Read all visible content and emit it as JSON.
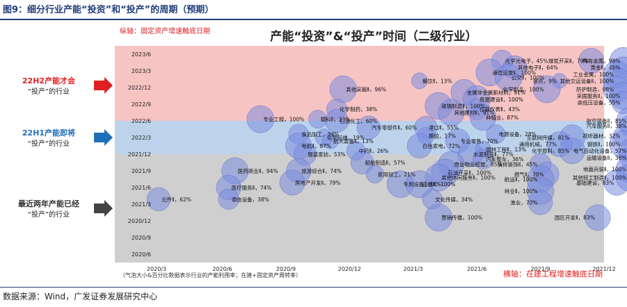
{
  "figure": {
    "title": "图9：细分行业产能“投资”和“投产”的周期（预期）",
    "source": "数据来源：Wind，广发证券发展研究中心"
  },
  "colors": {
    "band_top": "#f7c4c4",
    "band_mid": "#bcd3eb",
    "band_bottom": "#cfcfcf",
    "bubble": "#7c8ee0",
    "label_red": "#e02020",
    "label_blue": "#1f6fb8",
    "label_dark": "#333333"
  },
  "chart_data": {
    "type": "scatter",
    "title": "产能“投资”&“投产”时间（二级行业）",
    "y_axis_note": "纵轴：固定资产增速触底日期",
    "x_axis_note": "横轴：在建工程增速触底日期",
    "bubble_note": "（气泡大小&百分比数据表示行业的产能利用率；在建+固定资产周转率）",
    "xlabel": "在建工程增速触底日期",
    "ylabel": "固定资产增速触底日期",
    "x_ticks": [
      "2020/3",
      "2020/6",
      "2020/9",
      "2020/12",
      "2021/3",
      "2021/6",
      "2021/9",
      "2021/12"
    ],
    "y_ticks": [
      "2020/6",
      "2020/9",
      "2020/12",
      "2021/3",
      "2021/6",
      "2021/9",
      "2021/12",
      "2022/3",
      "2022/6",
      "2022/9",
      "2022/12",
      "2023/3",
      "2023/6"
    ],
    "bands": [
      {
        "label": "22H2产能才会“投产”的行业",
        "from": 8,
        "to": 12.5
      },
      {
        "label": "22H1产能即将“投产”的行业",
        "from": 6,
        "to": 8
      },
      {
        "label": "最近两年产能已经“投产”的行业",
        "from": -0.5,
        "to": 6
      }
    ],
    "series": [
      {
        "name": "行业",
        "points": [
          {
            "label": "光学光电子",
            "pct": "45%",
            "x": 5.4,
            "y": 11.6,
            "size": 45
          },
          {
            "label": "其他电子Ⅱ",
            "pct": "64%",
            "x": 5.6,
            "y": 11.2,
            "size": 64
          },
          {
            "label": "通信运营Ⅱ",
            "pct": "100%",
            "x": 5.2,
            "y": 10.9,
            "size": 100
          },
          {
            "label": "公交Ⅱ",
            "pct": "100%",
            "x": 5.5,
            "y": 10.6,
            "size": 100
          },
          {
            "label": "煤炭开采Ⅱ",
            "pct": "79%",
            "x": 6.8,
            "y": 11.6,
            "size": 79
          },
          {
            "label": "稀有金属",
            "pct": "98%",
            "x": 7.3,
            "y": 11.6,
            "size": 98
          },
          {
            "label": "黄金Ⅱ",
            "pct": "45%",
            "x": 7.3,
            "y": 11.2,
            "size": 45
          },
          {
            "label": "工业金属",
            "pct": "100%",
            "x": 7.2,
            "y": 10.8,
            "size": 100
          },
          {
            "label": "景点",
            "pct": "9%",
            "x": 6.3,
            "y": 10.4,
            "size": 9
          },
          {
            "label": "其他交运设备Ⅱ",
            "pct": "100%",
            "x": 7.2,
            "y": 10.4,
            "size": 100
          },
          {
            "label": "餐饮Ⅱ",
            "pct": "13%",
            "x": 4.1,
            "y": 10.4,
            "size": 13
          },
          {
            "label": "其他采掘Ⅱ",
            "pct": "96%",
            "x": 2.9,
            "y": 9.9,
            "size": 96
          },
          {
            "label": "化学制品",
            "pct": "100%",
            "x": 6.1,
            "y": 9.9,
            "size": 100
          },
          {
            "label": "防护制造",
            "pct": "98%",
            "x": 7.2,
            "y": 9.9,
            "size": 98
          },
          {
            "label": "金属非金属新材料",
            "pct": "91%",
            "x": 4.8,
            "y": 9.7,
            "size": 91
          },
          {
            "label": "房屋建设Ⅱ",
            "pct": "100%",
            "x": 5.0,
            "y": 9.3,
            "size": 100
          },
          {
            "label": "采掘服务Ⅱ",
            "pct": "100%",
            "x": 7.3,
            "y": 9.5,
            "size": 100
          },
          {
            "label": "玻璃制造Ⅱ",
            "pct": "100%",
            "x": 4.4,
            "y": 8.9,
            "size": 100
          },
          {
            "label": "高低压设备",
            "pct": "55%",
            "x": 7.3,
            "y": 9.1,
            "size": 55
          },
          {
            "label": "仪器仪表Ⅱ",
            "pct": "43%",
            "x": 5.0,
            "y": 8.7,
            "size": 43
          },
          {
            "label": "其他建材Ⅱ",
            "pct": "91%",
            "x": 4.6,
            "y": 8.5,
            "size": 91
          },
          {
            "label": "化学制药",
            "pct": "38%",
            "x": 2.8,
            "y": 8.7,
            "size": 38
          },
          {
            "label": "塑料Ⅱ",
            "pct": "23%",
            "x": 2.5,
            "y": 8.1,
            "size": 23
          },
          {
            "label": "种植业",
            "pct": "87%",
            "x": 5.1,
            "y": 8.2,
            "size": 87
          },
          {
            "label": "航空装备Ⅱ",
            "pct": "85%",
            "x": 7.4,
            "y": 8.0,
            "size": 85
          },
          {
            "label": "专业工程",
            "pct": "100%",
            "x": 1.6,
            "y": 8.1,
            "size": 100
          },
          {
            "label": "石油化工",
            "pct": "60%",
            "x": 2.8,
            "y": 8.0,
            "size": 60
          },
          {
            "label": "汽车服务Ⅱ",
            "pct": "38%",
            "x": 7.4,
            "y": 7.7,
            "size": 38
          },
          {
            "label": "汽车零部件Ⅱ",
            "pct": "60%",
            "x": 3.3,
            "y": 7.6,
            "size": 60
          },
          {
            "label": "港口Ⅱ",
            "pct": "55%",
            "x": 4.2,
            "y": 7.6,
            "size": 55
          },
          {
            "label": "食品加工",
            "pct": "34%",
            "x": 2.2,
            "y": 7.2,
            "size": 34
          },
          {
            "label": "电源设备",
            "pct": "28%",
            "x": 5.3,
            "y": 7.2,
            "size": 28
          },
          {
            "label": "视听器材",
            "pct": "32%",
            "x": 7.3,
            "y": 7.1,
            "size": 32
          },
          {
            "label": "化学纤维",
            "pct": "19%",
            "x": 2.6,
            "y": 7.0,
            "size": 19
          },
          {
            "label": "橡胶",
            "pct": "17%",
            "x": 4.2,
            "y": 7.1,
            "size": 17
          },
          {
            "label": "航天装备Ⅱ",
            "pct": "13%",
            "x": 2.7,
            "y": 6.8,
            "size": 13
          },
          {
            "label": "专业零售",
            "pct": "70%",
            "x": 4.7,
            "y": 6.8,
            "size": 70
          },
          {
            "label": "互联网传媒",
            "pct": "81%",
            "x": 6.5,
            "y": 7.0,
            "size": 81
          },
          {
            "label": "钢铁Ⅱ",
            "pct": "100%",
            "x": 7.3,
            "y": 6.6,
            "size": 100
          },
          {
            "label": "电机Ⅱ",
            "pct": "87%",
            "x": 2.2,
            "y": 6.5,
            "size": 87
          },
          {
            "label": "白色家电",
            "pct": "72%",
            "x": 4.1,
            "y": 6.5,
            "size": 72
          },
          {
            "label": "通用机械",
            "pct": "77%",
            "x": 6.3,
            "y": 6.6,
            "size": 77
          },
          {
            "label": "中药Ⅱ",
            "pct": "26%",
            "x": 3.1,
            "y": 6.2,
            "size": 26
          },
          {
            "label": "园林工程Ⅱ",
            "pct": "13%",
            "x": 5.1,
            "y": 6.3,
            "size": 13
          },
          {
            "label": "化学原料",
            "pct": "85%",
            "x": 6.5,
            "y": 6.2,
            "size": 85
          },
          {
            "label": "电气自动化设备",
            "pct": "57%",
            "x": 7.4,
            "y": 6.2,
            "size": 57
          },
          {
            "label": "服装家纺",
            "pct": "53%",
            "x": 2.3,
            "y": 6.0,
            "size": 53
          },
          {
            "label": "水泥制造Ⅱ",
            "pct": "77%",
            "x": 4.9,
            "y": 6.0,
            "size": 77
          },
          {
            "label": "汽车整车",
            "pct": "36%",
            "x": 5.1,
            "y": 5.7,
            "size": 36
          },
          {
            "label": "运输设备Ⅱ",
            "pct": "36%",
            "x": 7.4,
            "y": 5.8,
            "size": 36
          },
          {
            "label": "船舶制造Ⅱ",
            "pct": "57%",
            "x": 3.2,
            "y": 5.5,
            "size": 57
          },
          {
            "label": "商业物业经营",
            "pct": "85%",
            "x": 4.6,
            "y": 5.4,
            "size": 85
          },
          {
            "label": "装修装饰Ⅱ",
            "pct": "45%",
            "x": 6.0,
            "y": 5.4,
            "size": 45
          },
          {
            "label": "地面兵装Ⅱ",
            "pct": "100%",
            "x": 7.4,
            "y": 5.1,
            "size": 100
          },
          {
            "label": "医药商业Ⅱ",
            "pct": "94%",
            "x": 1.2,
            "y": 5.0,
            "size": 94
          },
          {
            "label": "旅游综合Ⅱ",
            "pct": "74%",
            "x": 2.2,
            "y": 5.0,
            "size": 74
          },
          {
            "label": "家用轻工",
            "pct": "21%",
            "x": 3.4,
            "y": 4.8,
            "size": 21
          },
          {
            "label": "石油开采Ⅱ",
            "pct": "100%",
            "x": 4.5,
            "y": 4.9,
            "size": 100
          },
          {
            "label": "燃气Ⅱ",
            "pct": "70%",
            "x": 6.1,
            "y": 4.8,
            "size": 70
          },
          {
            "label": "其他休闲服务Ⅱ",
            "pct": "100%",
            "x": 4.4,
            "y": 4.6,
            "size": 100
          },
          {
            "label": "航运Ⅱ",
            "pct": "100%",
            "x": 6.0,
            "y": 4.5,
            "size": 100
          },
          {
            "label": "其他轻工制造Ⅱ",
            "pct": "100%",
            "x": 7.4,
            "y": 4.6,
            "size": 100
          },
          {
            "label": "房地产开发Ⅱ",
            "pct": "79%",
            "x": 2.1,
            "y": 4.3,
            "size": 79
          },
          {
            "label": "专用设备",
            "pct": "98%",
            "x": 3.8,
            "y": 4.2,
            "size": 98
          },
          {
            "label": "造纸Ⅱ",
            "pct": "100%",
            "x": 4.1,
            "y": 4.2,
            "size": 100
          },
          {
            "label": "基础建设",
            "pct": "83%",
            "x": 7.2,
            "y": 4.3,
            "size": 83
          },
          {
            "label": "医疗服务Ⅱ",
            "pct": "74%",
            "x": 1.1,
            "y": 4.0,
            "size": 74
          },
          {
            "label": "林业Ⅱ",
            "pct": "100%",
            "x": 6.0,
            "y": 3.8,
            "size": 100
          },
          {
            "label": "通信设备",
            "pct": "38%",
            "x": 1.1,
            "y": 3.3,
            "size": 38
          },
          {
            "label": "文化传媒",
            "pct": "34%",
            "x": 4.3,
            "y": 3.3,
            "size": 34
          },
          {
            "label": "渔业",
            "pct": "70%",
            "x": 6.0,
            "y": 3.1,
            "size": 70
          },
          {
            "label": "元件Ⅱ",
            "pct": "62%",
            "x": 0.0,
            "y": 3.3,
            "size": 62
          },
          {
            "label": "营销传播",
            "pct": "100%",
            "x": 4.4,
            "y": 2.2,
            "size": 100
          },
          {
            "label": "园区开发Ⅱ",
            "pct": "83%",
            "x": 6.9,
            "y": 2.2,
            "size": 83
          }
        ]
      }
    ]
  }
}
